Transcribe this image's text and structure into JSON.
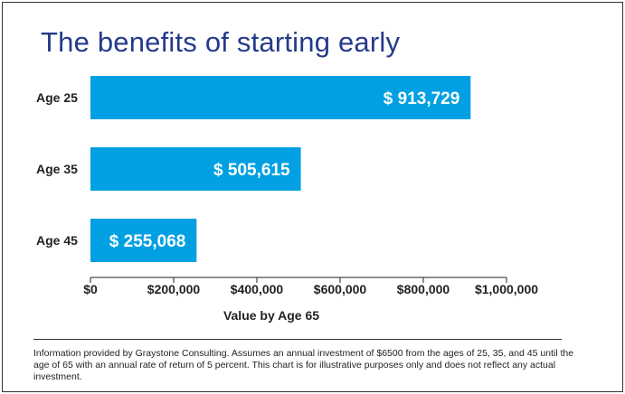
{
  "chart_data": {
    "type": "bar",
    "orientation": "horizontal",
    "title": "The benefits of starting early",
    "categories": [
      "Age 25",
      "Age 35",
      "Age 45"
    ],
    "values": [
      913729,
      505615,
      255068
    ],
    "data_labels": [
      "$ 913,729",
      "$ 505,615",
      "$ 255,068"
    ],
    "xlabel": "Value by Age 65",
    "ylabel": "",
    "xlim": [
      0,
      1000000
    ],
    "x_ticks": [
      0,
      200000,
      400000,
      600000,
      800000,
      1000000
    ],
    "x_tick_labels": [
      "$0",
      "$200,000",
      "$400,000",
      "$600,000",
      "$800,000",
      "$1,000,000"
    ],
    "grid": false,
    "bar_color": "#00a0e3"
  },
  "colors": {
    "title": "#253a8a",
    "bar": "#00a0e3",
    "bar_text": "#ffffff"
  },
  "footnote": "Information provided by Graystone Consulting. Assumes an annual investment of $6500 from the ages of 25, 35, and 45 until the age of 65 with an annual rate of return of 5 percent. This chart is for illustrative purposes only and does not reflect any actual investment."
}
